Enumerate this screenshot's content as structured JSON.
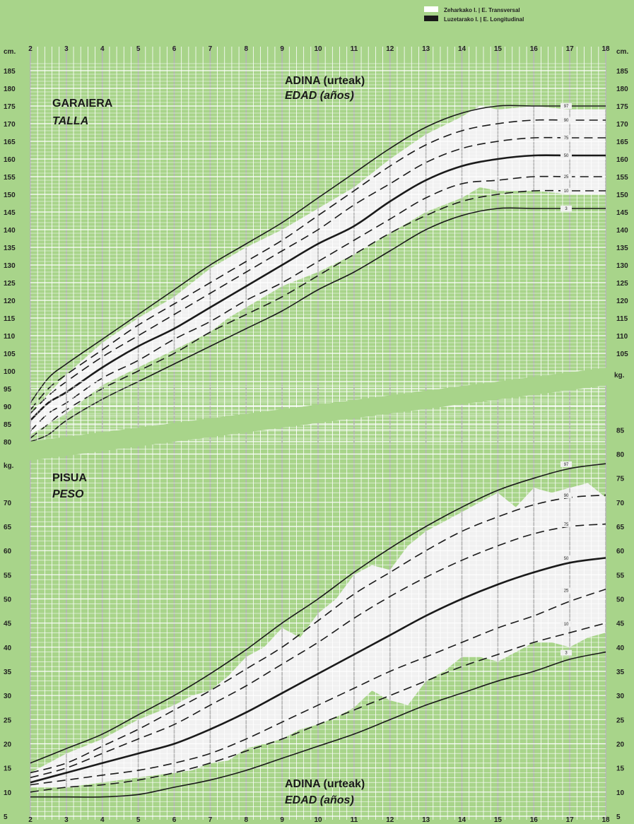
{
  "legend": {
    "transversal_label": "Zeharkako I. | E. Transversal",
    "longitudinal_label": "Luzetarako I. | E. Longitudinal"
  },
  "colors": {
    "background": "#a8d48a",
    "grid": "#ffffff",
    "band": "#f1f1f1",
    "line": "#1a1a1a"
  },
  "chart_data": [
    {
      "type": "line",
      "title": "GARAIERA",
      "subtitle": "TALLA",
      "xlabel": "ADINA (urteak)",
      "xlabel_es": "EDAD (años)",
      "ylabel": "cm.",
      "xlim": [
        2,
        18
      ],
      "ylim": [
        80,
        185
      ],
      "x_ticks": [
        2,
        3,
        4,
        5,
        6,
        7,
        8,
        9,
        10,
        11,
        12,
        13,
        14,
        15,
        16,
        17,
        18
      ],
      "y_ticks": [
        80,
        85,
        90,
        95,
        100,
        105,
        110,
        115,
        120,
        125,
        130,
        135,
        140,
        145,
        150,
        155,
        160,
        165,
        170,
        175,
        180,
        185
      ],
      "x": [
        2,
        2.5,
        3,
        4,
        5,
        6,
        7,
        8,
        9,
        10,
        11,
        12,
        13,
        14,
        15,
        16,
        17,
        18
      ],
      "series": [
        {
          "name": "3",
          "values": [
            80,
            82,
            86,
            92,
            97,
            102,
            107,
            112,
            117,
            123,
            128,
            134,
            140,
            144,
            146,
            146,
            146,
            146
          ]
        },
        {
          "name": "10",
          "values": [
            81,
            85,
            89,
            95,
            100,
            105,
            111,
            116,
            121,
            127,
            133,
            139,
            144,
            148,
            150,
            151,
            151,
            151
          ]
        },
        {
          "name": "25",
          "values": [
            83,
            88,
            91,
            98,
            103,
            109,
            114,
            120,
            125,
            131,
            137,
            143,
            149,
            153,
            154,
            155,
            155,
            155
          ]
        },
        {
          "name": "50",
          "values": [
            86,
            91,
            94,
            101,
            107,
            112,
            118,
            124,
            130,
            136,
            141,
            148,
            154,
            158,
            160,
            161,
            161,
            161
          ]
        },
        {
          "name": "75",
          "values": [
            88,
            93,
            97,
            104,
            110,
            116,
            122,
            128,
            134,
            140,
            147,
            153,
            159,
            163,
            165,
            166,
            166,
            166
          ]
        },
        {
          "name": "90",
          "values": [
            89,
            95,
            99,
            106,
            113,
            119,
            125,
            131,
            137,
            144,
            151,
            158,
            164,
            168,
            170,
            171,
            171,
            171
          ]
        },
        {
          "name": "97",
          "values": [
            91,
            98,
            102,
            109,
            116,
            123,
            130,
            136,
            142,
            149,
            156,
            163,
            169,
            173,
            175,
            175,
            175,
            175
          ]
        }
      ],
      "band_name": "Zeharkako I. | E. Transversal",
      "band": {
        "x": [
          2,
          3,
          4,
          5,
          6,
          7,
          7.5,
          8,
          9,
          10,
          11,
          12,
          13,
          14,
          14.5,
          15,
          16,
          17,
          18
        ],
        "lower": [
          82,
          88,
          96,
          101,
          106,
          111,
          115,
          118,
          124,
          128,
          133,
          139,
          145,
          149,
          152,
          151,
          151,
          150,
          150
        ],
        "upper": [
          88,
          99,
          108,
          115,
          121,
          129,
          132,
          135,
          140,
          146,
          152,
          160,
          167,
          172,
          175,
          174,
          175,
          174,
          174
        ]
      },
      "end_labels": [
        "97",
        "90",
        "75",
        "50",
        "25",
        "10",
        "3"
      ]
    },
    {
      "type": "line",
      "title": "PISUA",
      "subtitle": "PESO",
      "xlabel": "ADINA (urteak)",
      "xlabel_es": "EDAD (años)",
      "ylabel": "kg.",
      "xlim": [
        2,
        18
      ],
      "ylim": [
        5,
        95
      ],
      "x_ticks": [
        2,
        3,
        4,
        5,
        6,
        7,
        8,
        9,
        10,
        11,
        12,
        13,
        14,
        15,
        16,
        17,
        18
      ],
      "y_ticks": [
        5,
        10,
        15,
        20,
        25,
        30,
        35,
        40,
        45,
        50,
        55,
        60,
        65,
        70,
        75,
        80,
        85
      ],
      "x": [
        2,
        3,
        4,
        5,
        6,
        7,
        8,
        9,
        10,
        11,
        12,
        13,
        14,
        15,
        16,
        17,
        18
      ],
      "series": [
        {
          "name": "3",
          "values": [
            9,
            9,
            9,
            9.5,
            11,
            12.5,
            14.5,
            17,
            19.5,
            22,
            25,
            28,
            30.5,
            33,
            35,
            37.5,
            39
          ]
        },
        {
          "name": "10",
          "values": [
            10,
            11,
            11.5,
            12.5,
            14,
            16,
            18.5,
            21,
            24,
            27,
            30,
            33,
            36,
            38.5,
            41,
            43,
            45
          ]
        },
        {
          "name": "25",
          "values": [
            11.5,
            12.5,
            13.5,
            14.5,
            16,
            18,
            21,
            24.5,
            28,
            31.5,
            35,
            38,
            41,
            44,
            46.5,
            49.5,
            52
          ]
        },
        {
          "name": "50",
          "values": [
            12,
            14,
            16,
            18,
            20,
            23,
            26.5,
            30.5,
            34.5,
            38.5,
            42.5,
            46.5,
            50,
            53,
            55.5,
            57.5,
            58.5
          ]
        },
        {
          "name": "75",
          "values": [
            13,
            15,
            18,
            21,
            24,
            28,
            32,
            36.5,
            41,
            46,
            50.5,
            54.5,
            58,
            61,
            63.5,
            65,
            65.5
          ]
        },
        {
          "name": "90",
          "values": [
            14,
            16,
            19.5,
            23,
            27,
            31,
            35.5,
            40,
            45.5,
            51,
            55.5,
            60,
            64,
            67,
            69.5,
            71,
            71.5
          ]
        },
        {
          "name": "97",
          "values": [
            16,
            19,
            22,
            26,
            30,
            34.5,
            39.5,
            45,
            50,
            55.5,
            60.5,
            65,
            69,
            72.5,
            75,
            77,
            78
          ]
        }
      ],
      "band_name": "Zeharkako I. | E. Transversal",
      "band": {
        "x": [
          2,
          3,
          4,
          5,
          6,
          6.5,
          7,
          7.5,
          8,
          8.5,
          9,
          9.5,
          10,
          10.5,
          11,
          11.5,
          12,
          12.5,
          13,
          13.5,
          14,
          14.5,
          15,
          15.5,
          16,
          16.5,
          17,
          17.5,
          18
        ],
        "lower": [
          11,
          11,
          12,
          13,
          14,
          14.5,
          16,
          16.5,
          19,
          20,
          21,
          23,
          24,
          25.5,
          27.5,
          31,
          29,
          28,
          33,
          35,
          38,
          38,
          37,
          39,
          41,
          41,
          40,
          42,
          43
        ],
        "upper": [
          14,
          18,
          21,
          25,
          28,
          30,
          31,
          34,
          38,
          40,
          44,
          42,
          47,
          50,
          55,
          57,
          56,
          61,
          64,
          66,
          68,
          70,
          72,
          69,
          73,
          72,
          73,
          74,
          71
        ]
      },
      "end_labels": [
        "97",
        "90",
        "75",
        "50",
        "25",
        "10",
        "3"
      ]
    }
  ]
}
